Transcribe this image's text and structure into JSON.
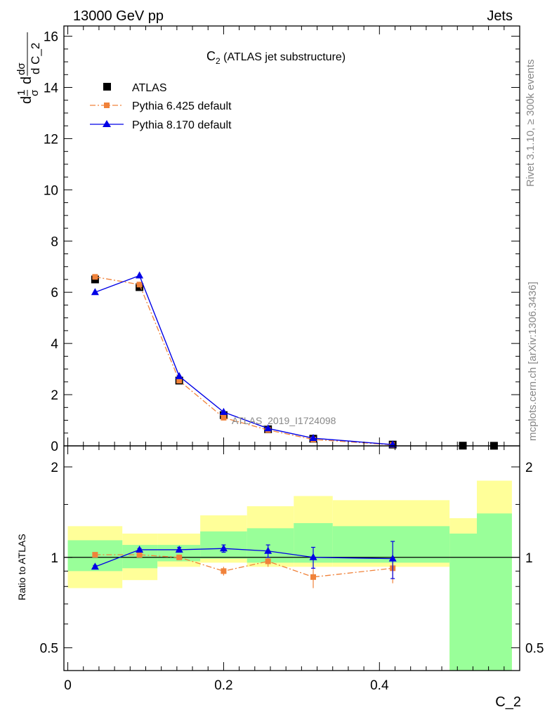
{
  "header": {
    "left": "13000 GeV pp",
    "right": "Jets"
  },
  "side_text": {
    "top": "Rivet 3.1.10, ≥ 300k events",
    "bottom": "mcplots.cern.ch [arXiv:1306.3436]"
  },
  "chart_data": {
    "type": "line",
    "title": "C",
    "title_sub": "2",
    "title_rest": " (ATLAS jet substructure)",
    "analysis_label": "ATLAS_2019_I1724098",
    "xlabel": "C_2",
    "xlim": [
      -0.005,
      0.58
    ],
    "x_ticks": [
      "0",
      "0.2",
      "0.4"
    ],
    "main": {
      "ylabel_parts": [
        "d",
        "1",
        "σ",
        "d",
        "dσ",
        "d C_2"
      ],
      "ylim": [
        0,
        16.4
      ],
      "y_ticks": [
        "0",
        "2",
        "4",
        "6",
        "8",
        "10",
        "12",
        "14",
        "16"
      ],
      "legend": [
        "ATLAS",
        "Pythia 6.425 default",
        "Pythia 8.170 default"
      ],
      "bins": [
        [
          0.0,
          0.07
        ],
        [
          0.07,
          0.115
        ],
        [
          0.115,
          0.17
        ],
        [
          0.17,
          0.23
        ],
        [
          0.23,
          0.29
        ],
        [
          0.29,
          0.34
        ],
        [
          0.34,
          0.49
        ],
        [
          0.49,
          0.525
        ],
        [
          0.525,
          0.57
        ]
      ],
      "x": [
        0.035,
        0.092,
        0.143,
        0.2,
        0.257,
        0.315,
        0.417,
        0.507,
        0.547
      ],
      "atlas": [
        6.5,
        6.2,
        2.55,
        1.2,
        0.65,
        0.28,
        0.05,
        0.008,
        0.004
      ],
      "pythia6": [
        6.6,
        6.3,
        2.55,
        1.1,
        0.62,
        0.25,
        0.04
      ],
      "pythia8": [
        6.0,
        6.65,
        2.72,
        1.32,
        0.68,
        0.3,
        0.05
      ]
    },
    "ratio": {
      "ylabel": "Ratio to ATLAS",
      "ylim": [
        0.42,
        2.35
      ],
      "y_ticks": [
        "0.5",
        "1",
        "2"
      ],
      "yellow_band": [
        [
          0.79,
          1.27
        ],
        [
          0.84,
          1.2
        ],
        [
          0.93,
          1.2
        ],
        [
          0.96,
          1.38
        ],
        [
          0.93,
          1.48
        ],
        [
          0.93,
          1.6
        ],
        [
          0.93,
          1.55
        ],
        [
          0.4,
          1.35
        ],
        [
          0.4,
          1.8
        ]
      ],
      "green_band": [
        [
          0.9,
          1.14
        ],
        [
          0.92,
          1.1
        ],
        [
          0.97,
          1.1
        ],
        [
          0.99,
          1.22
        ],
        [
          0.96,
          1.25
        ],
        [
          0.96,
          1.3
        ],
        [
          0.96,
          1.27
        ],
        [
          0.4,
          1.2
        ],
        [
          0.4,
          1.4
        ]
      ],
      "pythia6": [
        1.02,
        1.02,
        1.0,
        0.9,
        0.97,
        0.86,
        0.92
      ],
      "pythia6_err": [
        0.01,
        0.01,
        0.02,
        0.03,
        0.04,
        0.07,
        0.1
      ],
      "pythia8": [
        0.93,
        1.06,
        1.06,
        1.07,
        1.05,
        1.0,
        0.99
      ],
      "pythia8_err": [
        0.01,
        0.01,
        0.02,
        0.03,
        0.05,
        0.08,
        0.14
      ]
    },
    "colors": {
      "atlas": "#000000",
      "pythia6": "#f0823a",
      "pythia8": "#0000e6",
      "yellow": "#ffff99",
      "green": "#99ff99",
      "grey_text": "#888888"
    }
  }
}
